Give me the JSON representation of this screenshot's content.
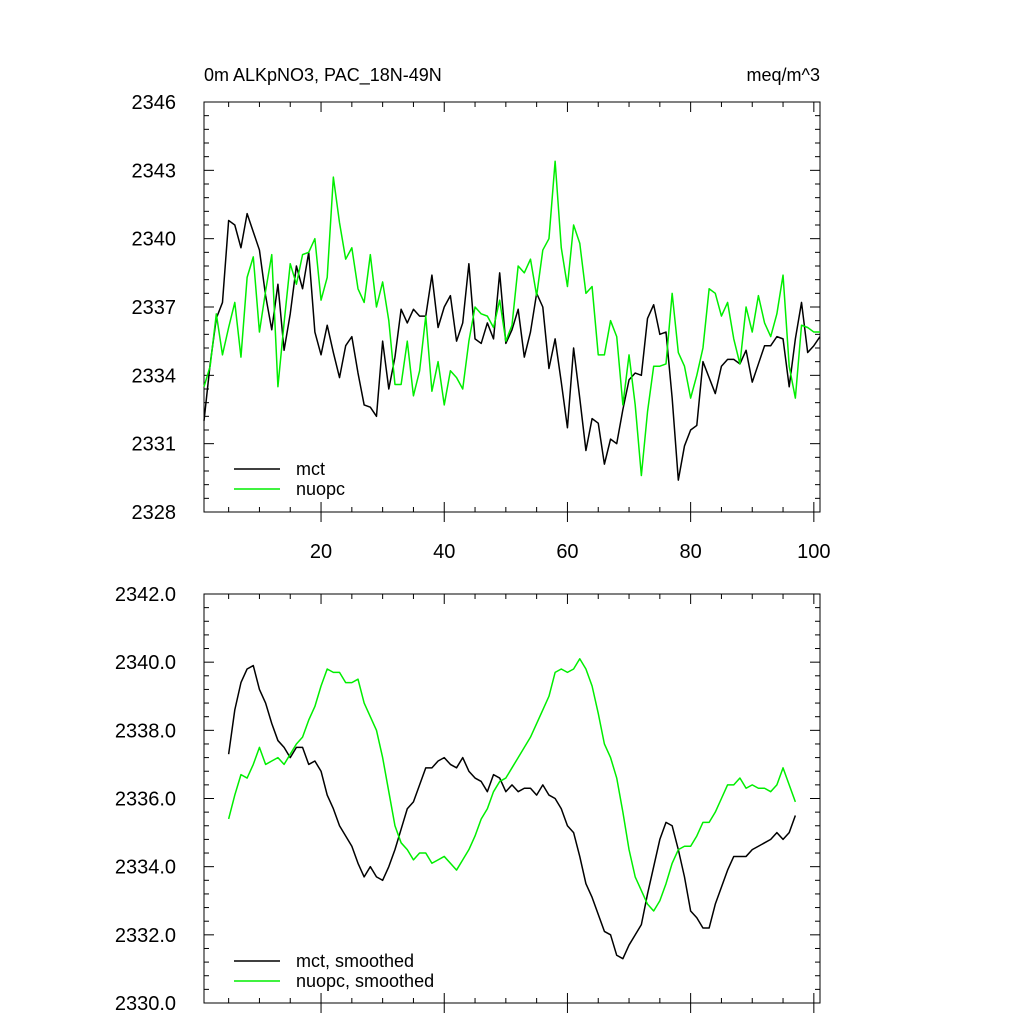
{
  "chart_data": [
    {
      "type": "line",
      "title_left": "0m ALKpNO3, PAC_18N-49N",
      "title_right": "meq/m^3",
      "xlim": [
        1,
        101
      ],
      "ylim": [
        2328,
        2346
      ],
      "yticks": [
        2328,
        2331,
        2334,
        2337,
        2340,
        2343,
        2346
      ],
      "ytick_labels": [
        "2328",
        "2331",
        "2334",
        "2337",
        "2340",
        "2343",
        "2346"
      ],
      "xticks": [
        20,
        40,
        60,
        80,
        100
      ],
      "xtick_labels": [
        "20",
        "40",
        "60",
        "80",
        "100"
      ],
      "legend_placement": "bottom-left",
      "series": [
        {
          "name": "mct",
          "color": "#000000",
          "x": [
            1,
            2,
            3,
            4,
            5,
            6,
            7,
            8,
            9,
            10,
            11,
            12,
            13,
            14,
            15,
            16,
            17,
            18,
            19,
            20,
            21,
            22,
            23,
            24,
            25,
            26,
            27,
            28,
            29,
            30,
            31,
            32,
            33,
            34,
            35,
            36,
            37,
            38,
            39,
            40,
            41,
            42,
            43,
            44,
            45,
            46,
            47,
            48,
            49,
            50,
            51,
            52,
            53,
            54,
            55,
            56,
            57,
            58,
            59,
            60,
            61,
            62,
            63,
            64,
            65,
            66,
            67,
            68,
            69,
            70,
            71,
            72,
            73,
            74,
            75,
            76,
            77,
            78,
            79,
            80,
            81,
            82,
            83,
            84,
            85,
            86,
            87,
            88,
            89,
            90,
            91,
            92,
            93,
            94,
            95,
            96,
            97,
            98,
            99,
            100,
            101
          ],
          "values": [
            2332.0,
            2334.5,
            2336.5,
            2337.2,
            2340.8,
            2340.6,
            2339.6,
            2341.1,
            2340.3,
            2339.5,
            2337.5,
            2336.0,
            2338.0,
            2335.1,
            2336.7,
            2338.8,
            2337.8,
            2339.4,
            2335.9,
            2334.9,
            2336.2,
            2335.0,
            2333.9,
            2335.3,
            2335.7,
            2334.1,
            2332.7,
            2332.6,
            2332.2,
            2335.5,
            2333.4,
            2334.8,
            2336.9,
            2336.3,
            2336.9,
            2336.6,
            2336.6,
            2338.4,
            2336.1,
            2337.0,
            2337.5,
            2335.5,
            2336.3,
            2338.9,
            2335.6,
            2335.4,
            2336.3,
            2335.6,
            2338.5,
            2335.4,
            2336.0,
            2336.9,
            2334.8,
            2335.9,
            2337.6,
            2337.0,
            2334.3,
            2335.6,
            2333.7,
            2331.7,
            2335.2,
            2333.0,
            2330.7,
            2332.1,
            2331.9,
            2330.1,
            2331.2,
            2331.0,
            2332.5,
            2333.8,
            2334.1,
            2334.0,
            2336.5,
            2337.1,
            2335.8,
            2335.9,
            2333.0,
            2329.4,
            2330.9,
            2331.6,
            2331.8,
            2334.6,
            2333.9,
            2333.2,
            2334.4,
            2334.7,
            2334.7,
            2334.5,
            2335.1,
            2333.7,
            2334.5,
            2335.3,
            2335.3,
            2335.7,
            2335.6,
            2333.5,
            2335.6,
            2337.2,
            2335.0,
            2335.3,
            2335.7
          ]
        },
        {
          "name": "nuopc",
          "color": "#00ee00",
          "x": [
            1,
            2,
            3,
            4,
            5,
            6,
            7,
            8,
            9,
            10,
            11,
            12,
            13,
            14,
            15,
            16,
            17,
            18,
            19,
            20,
            21,
            22,
            23,
            24,
            25,
            26,
            27,
            28,
            29,
            30,
            31,
            32,
            33,
            34,
            35,
            36,
            37,
            38,
            39,
            40,
            41,
            42,
            43,
            44,
            45,
            46,
            47,
            48,
            49,
            50,
            51,
            52,
            53,
            54,
            55,
            56,
            57,
            58,
            59,
            60,
            61,
            62,
            63,
            64,
            65,
            66,
            67,
            68,
            69,
            70,
            71,
            72,
            73,
            74,
            75,
            76,
            77,
            78,
            79,
            80,
            81,
            82,
            83,
            84,
            85,
            86,
            87,
            88,
            89,
            90,
            91,
            92,
            93,
            94,
            95,
            96,
            97,
            98,
            99,
            100,
            101
          ],
          "values": [
            2333.5,
            2334.4,
            2336.7,
            2334.9,
            2336.1,
            2337.2,
            2334.8,
            2338.3,
            2339.2,
            2335.9,
            2337.7,
            2339.3,
            2333.5,
            2336.3,
            2338.9,
            2338.0,
            2339.3,
            2339.4,
            2340.0,
            2337.3,
            2338.3,
            2342.7,
            2340.7,
            2339.1,
            2339.6,
            2337.8,
            2337.2,
            2339.3,
            2337.0,
            2338.1,
            2336.4,
            2333.6,
            2333.6,
            2335.5,
            2333.1,
            2334.2,
            2336.6,
            2333.3,
            2334.6,
            2332.7,
            2334.2,
            2333.9,
            2333.4,
            2335.5,
            2337.0,
            2336.7,
            2336.6,
            2336.1,
            2337.3,
            2335.5,
            2336.2,
            2338.8,
            2338.5,
            2339.1,
            2337.5,
            2339.5,
            2340.0,
            2343.4,
            2339.6,
            2337.9,
            2340.6,
            2339.8,
            2337.6,
            2337.9,
            2334.9,
            2334.9,
            2336.4,
            2335.7,
            2332.7,
            2334.9,
            2332.7,
            2329.6,
            2332.4,
            2334.4,
            2334.4,
            2334.5,
            2337.6,
            2335.0,
            2334.4,
            2333.0,
            2334.0,
            2335.2,
            2337.8,
            2337.6,
            2336.6,
            2337.2,
            2335.6,
            2334.5,
            2337.0,
            2335.9,
            2337.5,
            2336.3,
            2335.7,
            2336.7,
            2338.4,
            2334.4,
            2333.0,
            2336.2,
            2336.1,
            2335.9,
            2335.9
          ]
        }
      ]
    },
    {
      "type": "line",
      "xlim": [
        1,
        101
      ],
      "ylim": [
        2330.0,
        2342.0
      ],
      "yticks": [
        2330.0,
        2332.0,
        2334.0,
        2336.0,
        2338.0,
        2340.0,
        2342.0
      ],
      "ytick_labels": [
        "2330.0",
        "2332.0",
        "2334.0",
        "2336.0",
        "2338.0",
        "2340.0",
        "2342.0"
      ],
      "legend_placement": "bottom-left",
      "series": [
        {
          "name": "mct, smoothed",
          "color": "#000000",
          "x": [
            5,
            6,
            7,
            8,
            9,
            10,
            11,
            12,
            13,
            14,
            15,
            16,
            17,
            18,
            19,
            20,
            21,
            22,
            23,
            24,
            25,
            26,
            27,
            28,
            29,
            30,
            31,
            32,
            33,
            34,
            35,
            36,
            37,
            38,
            39,
            40,
            41,
            42,
            43,
            44,
            45,
            46,
            47,
            48,
            49,
            50,
            51,
            52,
            53,
            54,
            55,
            56,
            57,
            58,
            59,
            60,
            61,
            62,
            63,
            64,
            65,
            66,
            67,
            68,
            69,
            70,
            71,
            72,
            73,
            74,
            75,
            76,
            77,
            78,
            79,
            80,
            81,
            82,
            83,
            84,
            85,
            86,
            87,
            88,
            89,
            90,
            91,
            92,
            93,
            94,
            95,
            96,
            97
          ],
          "values": [
            2337.3,
            2338.6,
            2339.4,
            2339.8,
            2339.9,
            2339.2,
            2338.8,
            2338.2,
            2337.7,
            2337.5,
            2337.2,
            2337.5,
            2337.5,
            2337.0,
            2337.1,
            2336.8,
            2336.1,
            2335.7,
            2335.2,
            2334.9,
            2334.6,
            2334.1,
            2333.7,
            2334.0,
            2333.7,
            2333.6,
            2334.0,
            2334.5,
            2335.1,
            2335.7,
            2335.9,
            2336.4,
            2336.9,
            2336.9,
            2337.1,
            2337.2,
            2337.0,
            2336.9,
            2337.2,
            2336.8,
            2336.6,
            2336.5,
            2336.2,
            2336.7,
            2336.6,
            2336.2,
            2336.4,
            2336.2,
            2336.3,
            2336.3,
            2336.1,
            2336.4,
            2336.1,
            2336.0,
            2335.7,
            2335.2,
            2335.0,
            2334.3,
            2333.5,
            2333.1,
            2332.6,
            2332.1,
            2332.0,
            2331.4,
            2331.3,
            2331.7,
            2332.0,
            2332.3,
            2333.2,
            2334.0,
            2334.8,
            2335.3,
            2335.2,
            2334.5,
            2333.7,
            2332.7,
            2332.5,
            2332.2,
            2332.2,
            2332.9,
            2333.4,
            2333.9,
            2334.3,
            2334.3,
            2334.3,
            2334.5,
            2334.6,
            2334.7,
            2334.8,
            2335.0,
            2334.8,
            2335.0,
            2335.5
          ]
        },
        {
          "name": "nuopc, smoothed",
          "color": "#00ee00",
          "x": [
            5,
            6,
            7,
            8,
            9,
            10,
            11,
            12,
            13,
            14,
            15,
            16,
            17,
            18,
            19,
            20,
            21,
            22,
            23,
            24,
            25,
            26,
            27,
            28,
            29,
            30,
            31,
            32,
            33,
            34,
            35,
            36,
            37,
            38,
            39,
            40,
            41,
            42,
            43,
            44,
            45,
            46,
            47,
            48,
            49,
            50,
            51,
            52,
            53,
            54,
            55,
            56,
            57,
            58,
            59,
            60,
            61,
            62,
            63,
            64,
            65,
            66,
            67,
            68,
            69,
            70,
            71,
            72,
            73,
            74,
            75,
            76,
            77,
            78,
            79,
            80,
            81,
            82,
            83,
            84,
            85,
            86,
            87,
            88,
            89,
            90,
            91,
            92,
            93,
            94,
            95,
            96,
            97
          ],
          "values": [
            2335.4,
            2336.1,
            2336.7,
            2336.6,
            2337.0,
            2337.5,
            2337.0,
            2337.1,
            2337.2,
            2337.0,
            2337.3,
            2337.6,
            2337.8,
            2338.3,
            2338.7,
            2339.3,
            2339.8,
            2339.7,
            2339.7,
            2339.4,
            2339.4,
            2339.5,
            2338.8,
            2338.4,
            2338.0,
            2337.2,
            2336.2,
            2335.2,
            2334.7,
            2334.5,
            2334.2,
            2334.4,
            2334.4,
            2334.1,
            2334.2,
            2334.3,
            2334.1,
            2333.9,
            2334.2,
            2334.5,
            2334.9,
            2335.4,
            2335.7,
            2336.2,
            2336.5,
            2336.6,
            2336.9,
            2337.2,
            2337.5,
            2337.8,
            2338.2,
            2338.6,
            2339.0,
            2339.7,
            2339.8,
            2339.7,
            2339.8,
            2340.1,
            2339.8,
            2339.3,
            2338.5,
            2337.6,
            2337.2,
            2336.6,
            2335.6,
            2334.5,
            2333.7,
            2333.3,
            2332.9,
            2332.7,
            2333.0,
            2333.5,
            2334.1,
            2334.5,
            2334.6,
            2334.6,
            2334.9,
            2335.3,
            2335.3,
            2335.6,
            2336.0,
            2336.4,
            2336.4,
            2336.6,
            2336.3,
            2336.4,
            2336.3,
            2336.3,
            2336.2,
            2336.4,
            2336.9,
            2336.4,
            2335.9
          ]
        }
      ]
    }
  ]
}
